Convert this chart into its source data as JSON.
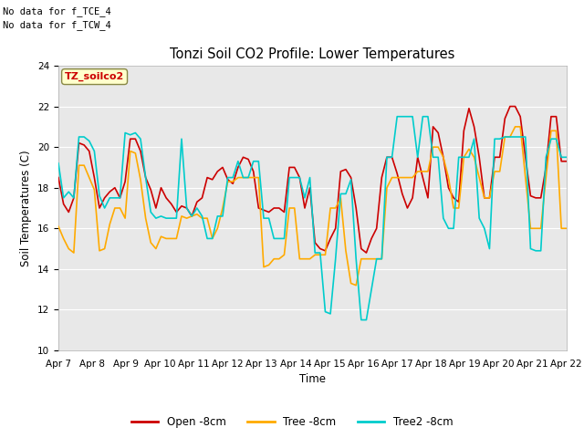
{
  "title": "Tonzi Soil CO2 Profile: Lower Temperatures",
  "xlabel": "Time",
  "ylabel": "Soil Temperatures (C)",
  "ylim": [
    10,
    24
  ],
  "yticks": [
    10,
    12,
    14,
    16,
    18,
    20,
    22,
    24
  ],
  "xtick_labels": [
    "Apr 7",
    "Apr 8",
    "Apr 9",
    "Apr 10",
    "Apr 11",
    "Apr 12",
    "Apr 13",
    "Apr 14",
    "Apr 15",
    "Apr 16",
    "Apr 17",
    "Apr 18",
    "Apr 19",
    "Apr 20",
    "Apr 21",
    "Apr 22"
  ],
  "annot1": "No data for f_TCE_4",
  "annot2": "No data for f_TCW_4",
  "legend_box_text": "TZ_soilco2",
  "plot_bg_color": "#e8e8e8",
  "fig_bg_color": "#ffffff",
  "grid_color": "#d0d0d0",
  "line_colors": [
    "#cc0000",
    "#ffaa00",
    "#00cccc"
  ],
  "legend_labels": [
    "Open -8cm",
    "Tree -8cm",
    "Tree2 -8cm"
  ],
  "open_8cm": [
    18.5,
    17.2,
    16.8,
    17.5,
    20.2,
    20.1,
    19.8,
    18.5,
    17.0,
    17.5,
    17.8,
    18.0,
    17.5,
    18.3,
    20.4,
    20.4,
    19.8,
    18.5,
    17.9,
    17.0,
    18.0,
    17.5,
    17.2,
    16.8,
    17.1,
    17.0,
    16.6,
    17.3,
    17.5,
    18.5,
    18.4,
    18.8,
    19.0,
    18.4,
    18.2,
    19.0,
    19.5,
    19.4,
    18.8,
    17.0,
    16.9,
    16.8,
    17.0,
    17.0,
    16.8,
    19.0,
    19.0,
    18.5,
    17.0,
    18.0,
    15.3,
    15.0,
    14.9,
    15.5,
    16.0,
    18.8,
    18.9,
    18.5,
    17.0,
    15.0,
    14.8,
    15.5,
    16.0,
    18.5,
    19.5,
    19.5,
    18.7,
    17.7,
    17.0,
    17.5,
    19.5,
    18.5,
    17.5,
    21.0,
    20.7,
    19.5,
    18.0,
    17.5,
    17.3,
    20.8,
    21.9,
    21.0,
    19.5,
    17.5,
    17.5,
    19.5,
    19.5,
    21.4,
    22.0,
    22.0,
    21.5,
    19.5,
    17.6,
    17.5,
    17.5,
    19.0,
    21.5,
    21.5,
    19.3,
    19.3
  ],
  "tree_8cm": [
    16.1,
    15.5,
    15.0,
    14.8,
    19.1,
    19.1,
    18.5,
    17.9,
    14.9,
    15.0,
    16.2,
    17.0,
    17.0,
    16.5,
    19.8,
    19.7,
    18.4,
    16.5,
    15.3,
    15.0,
    15.6,
    15.5,
    15.5,
    15.5,
    16.6,
    16.5,
    16.6,
    16.7,
    16.5,
    16.5,
    15.5,
    16.0,
    17.0,
    18.3,
    18.3,
    18.5,
    18.5,
    18.5,
    18.5,
    18.5,
    14.1,
    14.2,
    14.5,
    14.5,
    14.7,
    17.0,
    17.0,
    14.5,
    14.5,
    14.5,
    14.7,
    14.7,
    14.7,
    17.0,
    17.0,
    17.5,
    14.9,
    13.3,
    13.2,
    14.5,
    14.5,
    14.5,
    14.5,
    14.5,
    18.0,
    18.5,
    18.5,
    18.5,
    18.5,
    18.5,
    18.8,
    18.8,
    18.8,
    20.0,
    20.0,
    19.5,
    18.5,
    17.0,
    17.0,
    19.5,
    19.9,
    19.5,
    18.5,
    17.5,
    17.5,
    18.8,
    18.8,
    20.5,
    20.5,
    21.0,
    21.0,
    18.5,
    16.0,
    16.0,
    16.0,
    18.5,
    20.8,
    20.8,
    16.0,
    16.0
  ],
  "tree2_8cm": [
    19.2,
    17.5,
    17.8,
    17.5,
    20.5,
    20.5,
    20.3,
    19.8,
    17.6,
    17.0,
    17.5,
    17.5,
    17.5,
    20.7,
    20.6,
    20.7,
    20.4,
    18.5,
    16.8,
    16.5,
    16.6,
    16.5,
    16.5,
    16.5,
    20.4,
    17.0,
    16.6,
    17.0,
    16.6,
    15.5,
    15.5,
    16.6,
    16.6,
    18.5,
    18.5,
    19.3,
    18.5,
    18.5,
    19.3,
    19.3,
    16.5,
    16.5,
    15.5,
    15.5,
    15.5,
    18.5,
    18.5,
    18.5,
    17.5,
    18.5,
    14.8,
    14.8,
    11.9,
    11.8,
    14.5,
    17.7,
    17.7,
    18.4,
    14.5,
    11.5,
    11.5,
    13.0,
    14.5,
    14.5,
    19.5,
    19.5,
    21.5,
    21.5,
    21.5,
    21.5,
    19.5,
    21.5,
    21.5,
    19.5,
    19.5,
    16.5,
    16.0,
    16.0,
    19.5,
    19.5,
    19.5,
    20.4,
    16.5,
    16.0,
    15.0,
    20.4,
    20.4,
    20.5,
    20.5,
    20.5,
    20.5,
    20.5,
    15.0,
    14.9,
    14.9,
    19.5,
    20.4,
    20.4,
    19.5,
    19.5
  ]
}
